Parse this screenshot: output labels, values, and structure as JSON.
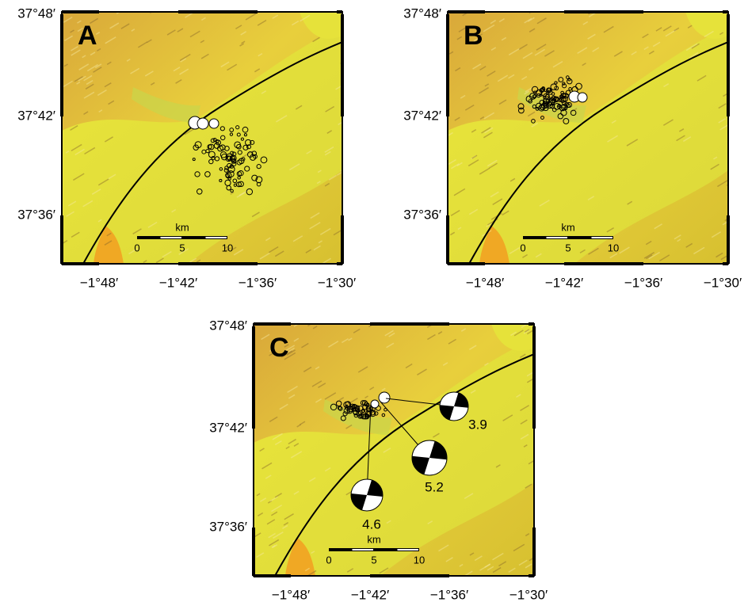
{
  "panels": [
    {
      "label": "A",
      "lat_labels": [
        "37°48′",
        "37°42′",
        "37°36′"
      ],
      "lon_labels": [
        "−1°48′",
        "−1°42′",
        "−1°36′",
        "−1°30′"
      ],
      "scale": {
        "unit": "km",
        "labels": [
          "0",
          "5",
          "10"
        ]
      }
    },
    {
      "label": "B",
      "lat_labels": [
        "37°48′",
        "37°42′",
        "37°36′"
      ],
      "lon_labels": [
        "−1°48′",
        "−1°42′",
        "−1°36′",
        "−1°30′"
      ],
      "scale": {
        "unit": "km",
        "labels": [
          "0",
          "5",
          "10"
        ]
      }
    },
    {
      "label": "C",
      "lat_labels": [
        "37°48′",
        "37°42′",
        "37°36′"
      ],
      "lon_labels": [
        "−1°48′",
        "−1°42′",
        "−1°36′",
        "−1°30′"
      ],
      "scale": {
        "unit": "km",
        "labels": [
          "0",
          "5",
          "10"
        ]
      },
      "focal_mechanisms": [
        {
          "magnitude": "3.9"
        },
        {
          "magnitude": "5.2"
        },
        {
          "magnitude": "4.6"
        }
      ]
    }
  ]
}
